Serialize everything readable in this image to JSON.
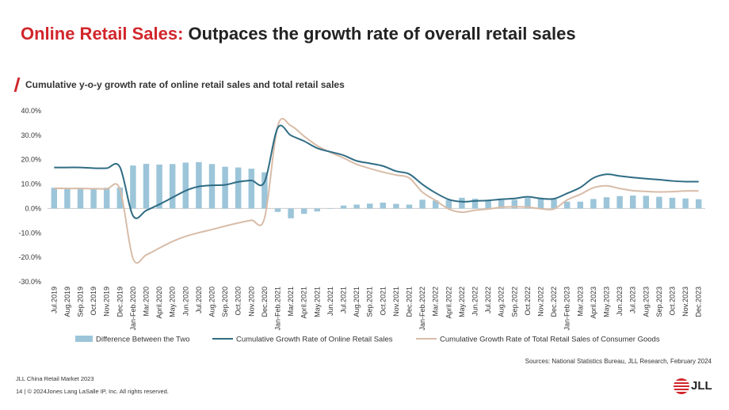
{
  "title": {
    "highlight": "Online Retail Sales:",
    "rest": "Outpaces the growth rate of overall retail sales"
  },
  "subtitle": "Cumulative y-o-y growth rate of online retail sales and total retail sales",
  "colors": {
    "brand_red": "#d1262b",
    "bar": "#9cc5d9",
    "online_line": "#2f6c84",
    "total_line": "#d8bca8",
    "axis": "#cccccc"
  },
  "chart_data": {
    "type": "bar+line",
    "ylim": [
      -30,
      40
    ],
    "yticks": [
      -30,
      -20,
      -10,
      0,
      10,
      20,
      30,
      40
    ],
    "ytick_labels": [
      "-30.0%",
      "-20.0%",
      "-10.0%",
      "0.0%",
      "10.0%",
      "20.0%",
      "30.0%",
      "40.0%"
    ],
    "categories": [
      "Jul.2019",
      "Aug.2019",
      "Sep.2019",
      "Oct.2019",
      "Nov.2019",
      "Dec.2019",
      "Jan-Feb.2020",
      "Mar.2020",
      "April.2020",
      "May.2020",
      "Jun.2020",
      "Jul.2020",
      "Aug.2020",
      "Sep.2020",
      "Oct.2020",
      "Nov.2020",
      "Dec.2020",
      "Jan-Feb.2021",
      "Mar.2021",
      "April.2021",
      "May.2021",
      "Jun.2021",
      "Jul.2021",
      "Aug.2021",
      "Sep.2021",
      "Oct.2021",
      "Nov.2021",
      "Dec.2021",
      "Jan-Feb.2022",
      "Mar.2022",
      "April.2022",
      "May.2022",
      "Jun.2022",
      "Jul.2022",
      "Aug.2022",
      "Sep.2022",
      "Oct.2022",
      "Nov.2022",
      "Dec.2022",
      "Jan-Feb.2023",
      "Mar.2023",
      "April.2023",
      "May.2023",
      "Jun.2023",
      "Jul.2023",
      "Aug.2023",
      "Sep.2023",
      "Oct.2023",
      "Nov.2023",
      "Dec.2023"
    ],
    "series": [
      {
        "name": "Difference Between the Two",
        "kind": "bar",
        "values": [
          8.5,
          8.5,
          8.5,
          8.3,
          8.5,
          8.6,
          17.6,
          18.3,
          18.0,
          18.2,
          18.8,
          19.0,
          18.2,
          17.1,
          16.8,
          16.3,
          14.8,
          -1.4,
          -4.0,
          -2.2,
          -1.2,
          0.0,
          1.2,
          1.6,
          2.0,
          2.4,
          1.9,
          1.6,
          3.6,
          3.3,
          3.5,
          4.4,
          4.0,
          3.3,
          3.5,
          3.6,
          4.3,
          4.2,
          3.9,
          2.8,
          2.8,
          3.9,
          4.6,
          5.1,
          5.3,
          5.2,
          4.8,
          4.4,
          4.1,
          3.8
        ]
      },
      {
        "name": "Cumulative Growth Rate of Online Retail Sales",
        "kind": "line",
        "values": [
          16.8,
          16.8,
          16.8,
          16.5,
          16.5,
          17.0,
          -3.0,
          -0.8,
          1.7,
          4.5,
          7.3,
          9.0,
          9.5,
          9.7,
          10.9,
          11.5,
          10.9,
          33.0,
          29.9,
          27.6,
          24.7,
          23.2,
          21.8,
          19.5,
          18.5,
          17.4,
          15.3,
          14.1,
          9.9,
          6.4,
          3.7,
          2.8,
          3.1,
          3.3,
          3.8,
          4.1,
          4.8,
          4.1,
          4.0,
          6.2,
          8.6,
          12.5,
          14.0,
          13.3,
          12.7,
          12.2,
          11.8,
          11.3,
          11.0,
          11.0
        ]
      },
      {
        "name": "Cumulative Growth Rate of Total Retail Sales of Consumer Goods",
        "kind": "line",
        "values": [
          8.3,
          8.2,
          8.2,
          8.1,
          8.0,
          8.0,
          -20.5,
          -19.0,
          -16.2,
          -13.5,
          -11.4,
          -9.9,
          -8.6,
          -7.2,
          -5.9,
          -4.8,
          -3.9,
          33.8,
          33.9,
          29.6,
          25.7,
          23.0,
          20.7,
          18.1,
          16.4,
          14.9,
          13.7,
          12.5,
          6.7,
          3.3,
          -0.2,
          -1.5,
          -0.7,
          -0.2,
          0.5,
          0.7,
          0.6,
          -0.1,
          -0.2,
          3.5,
          5.8,
          8.5,
          9.3,
          8.2,
          7.3,
          7.0,
          6.8,
          6.9,
          7.2,
          7.2
        ]
      }
    ]
  },
  "source": "Sources: National Statistics Bureau, JLL Research, February 2024",
  "footer": {
    "line1": "JLL China Retail Market 2023",
    "line2": "14 | © 2024Jones Lang LaSalle IP, Inc. All rights reserved."
  },
  "logo": {
    "text": "JLL"
  }
}
